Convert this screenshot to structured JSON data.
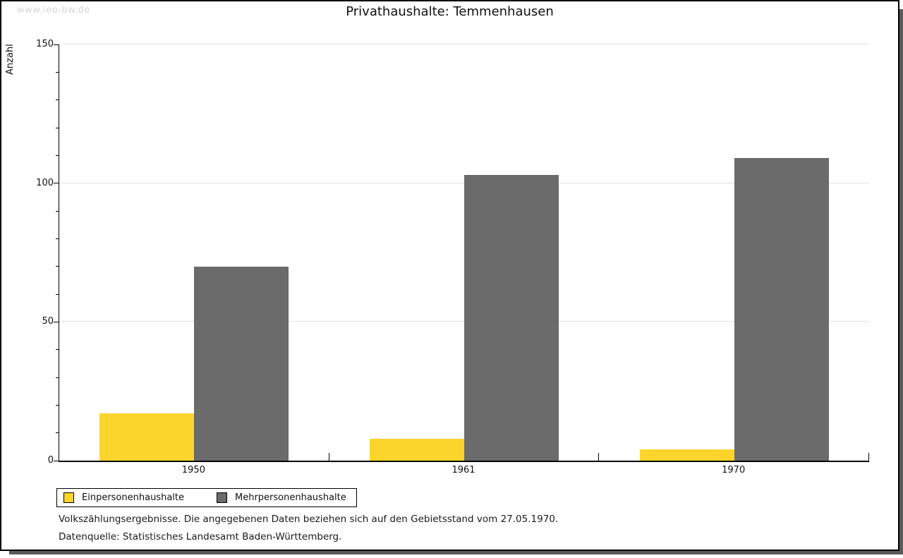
{
  "watermark": "www.leo-bw.de",
  "chart_data": {
    "type": "bar",
    "title": "Privathaushalte: Temmenhausen",
    "ylabel": "Anzahl",
    "categories": [
      "1950",
      "1961",
      "1970"
    ],
    "series": [
      {
        "name": "Einpersonenhaushalte",
        "color": "#fbd42c",
        "values": [
          17,
          8,
          4
        ]
      },
      {
        "name": "Mehrpersonenhaushalte",
        "color": "#6b6b6b",
        "values": [
          70,
          103,
          109
        ]
      }
    ],
    "ylim": [
      0,
      150
    ],
    "y_major_tick": 50,
    "y_minor_tick": 10,
    "grid": "horizontal-major",
    "legend_position": "bottom-left",
    "bar_colors_note": {
      "axis_color": "#000000",
      "gridline_color": "#e2e2e2",
      "watermark_color": "#d6d6d6"
    }
  },
  "notes": [
    "Volkszählungsergebnisse. Die angegebenen Daten beziehen sich auf den Gebietsstand vom 27.05.1970.",
    "Datenquelle: Statistisches Landesamt Baden-Württemberg."
  ]
}
